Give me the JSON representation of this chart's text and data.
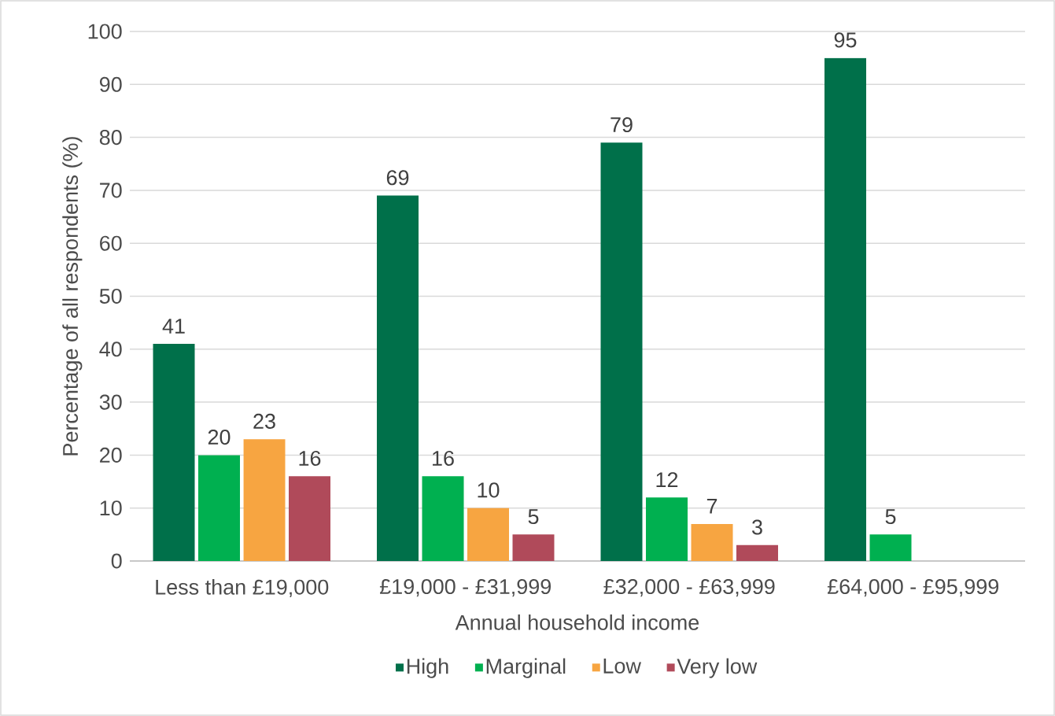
{
  "chart_data": {
    "type": "bar",
    "xlabel": "Annual household income",
    "ylabel": "Percentage of all respondents (%)",
    "categories": [
      "Less than £19,000",
      "£19,000 - £31,999",
      "£32,000 - £63,999",
      "£64,000 - £95,999"
    ],
    "series": [
      {
        "name": "High",
        "color": "#00704a",
        "values": [
          41,
          69,
          79,
          95
        ]
      },
      {
        "name": "Marginal",
        "color": "#00b050",
        "values": [
          20,
          16,
          12,
          5
        ]
      },
      {
        "name": "Low",
        "color": "#f7a541",
        "values": [
          23,
          10,
          7,
          null
        ]
      },
      {
        "name": "Very low",
        "color": "#b04a5a",
        "values": [
          16,
          5,
          3,
          null
        ]
      }
    ],
    "ylim": [
      0,
      100
    ],
    "yticks": [
      0,
      10,
      20,
      30,
      40,
      50,
      60,
      70,
      80,
      90,
      100
    ],
    "grid": "y",
    "legend": "bottom",
    "data_labels": true
  }
}
